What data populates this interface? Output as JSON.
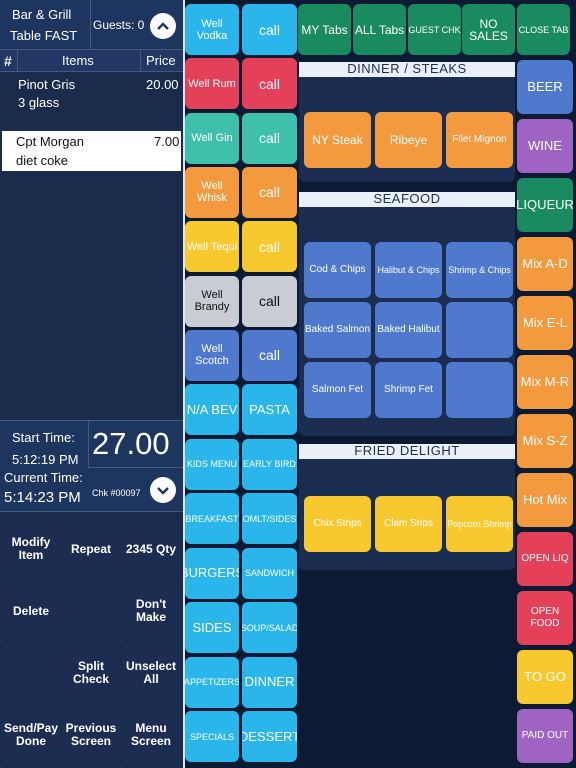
{
  "header": {
    "location": "Bar & Grill",
    "table": "Table FAST",
    "guests": "Guests: 0"
  },
  "columns": {
    "num": "#",
    "items": "Items",
    "price": "Price"
  },
  "order_items": [
    {
      "name": "Pinot Gris",
      "mod": "3 glass",
      "price": "20.00"
    },
    {
      "name": "Cpt Morgan",
      "mod": "diet coke",
      "price": "7.00"
    }
  ],
  "totals": {
    "start_label": "Start Time:",
    "start_time": "5:12:19 PM",
    "current_label": "Current Time:",
    "current_time": "5:14:23 PM",
    "total": "27.00",
    "check": "Chk #00097"
  },
  "actions": [
    "Modify Item",
    "Repeat",
    "2345 Qty",
    "Delete",
    "",
    "Don't Make",
    "",
    "Split Check",
    "Unselect All",
    "Send/Pay Done",
    "Previous Screen",
    "Menu Screen"
  ],
  "wells": [
    {
      "label": "Well Vodka",
      "color": "cyan",
      "call": "call",
      "call_color": "cyan"
    },
    {
      "label": "Well Rum",
      "color": "red",
      "call": "call",
      "call_color": "red"
    },
    {
      "label": "Well Gin",
      "color": "teal",
      "call": "call",
      "call_color": "teal"
    },
    {
      "label": "Well Whisk",
      "color": "orange",
      "call": "call",
      "call_color": "orange"
    },
    {
      "label": "Well Tequi",
      "color": "yellow",
      "call": "call",
      "call_color": "yellow"
    },
    {
      "label": "Well Brandy",
      "color": "gray",
      "call": "call",
      "call_color": "gray"
    },
    {
      "label": "Well Scotch",
      "color": "blue",
      "call": "call",
      "call_color": "blue"
    }
  ],
  "categories": [
    [
      "N/A BEV",
      "PASTA"
    ],
    [
      "KIDS MENU",
      "EARLY BIRD"
    ],
    [
      "BREAKFAST",
      "OMLT/SIDES"
    ],
    [
      "BURGERS",
      "SANDWICH"
    ],
    [
      "SIDES",
      "SOUP/SALAD"
    ],
    [
      "APPETIZERS",
      "DINNER"
    ],
    [
      "SPECIALS",
      "DESSERT"
    ]
  ],
  "top_tabs": [
    "MY Tabs",
    "ALL Tabs",
    "GUEST CHK",
    "NO SALES",
    "CLOSE TAB"
  ],
  "sections": [
    {
      "title": "DINNER / STEAKS",
      "items": [
        "NY Steak",
        "Ribeye",
        "Filet Mignon"
      ]
    },
    {
      "title": "SEAFOOD",
      "items": [
        "Cod & Chips",
        "Halibut & Chips",
        "Shrimp & Chips",
        "Baked Salmon",
        "Baked Halibut",
        "",
        "Salmon Fet",
        "Shrimp Fet",
        ""
      ]
    },
    {
      "title": "FRIED DELIGHT",
      "items": [
        "Chix Strips",
        "Clam Srips",
        "Popcorn Shrimp"
      ]
    }
  ],
  "right_col": [
    "BEER",
    "WINE",
    "LIQUEUR",
    "Mix A-D",
    "Mix E-L",
    "Mix M-R",
    "Mix S-Z",
    "Hot Mix",
    "OPEN LIQ",
    "OPEN FOOD",
    "TO GO",
    "PAID OUT"
  ],
  "colors": {
    "background": "#0d1a33",
    "panel": "#1b2b4b",
    "section": "#1c2d52"
  }
}
